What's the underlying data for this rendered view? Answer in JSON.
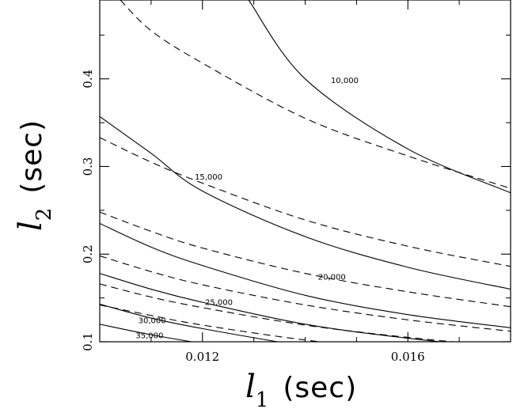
{
  "chart_data": {
    "type": "line",
    "title": "",
    "xlabel": {
      "symbol": "l",
      "subscript": "1",
      "unit": "(sec)"
    },
    "ylabel": {
      "symbol": "l",
      "subscript": "2",
      "unit": "(sec)"
    },
    "xlim": [
      0.01,
      0.018
    ],
    "ylim": [
      0.1,
      0.49
    ],
    "xticks": [
      {
        "value": 0.012,
        "label": "0.012"
      },
      {
        "value": 0.016,
        "label": "0.016"
      }
    ],
    "yticks": [
      {
        "value": 0.1,
        "label": "0.1"
      },
      {
        "value": 0.2,
        "label": "0.2"
      },
      {
        "value": 0.3,
        "label": "0.3"
      },
      {
        "value": 0.4,
        "label": "0.4"
      }
    ],
    "grid": false,
    "series": [
      {
        "name": "10,000",
        "style": "solid",
        "points": [
          [
            0.0129,
            0.49
          ],
          [
            0.014,
            0.4
          ],
          [
            0.016,
            0.32
          ],
          [
            0.018,
            0.27
          ]
        ],
        "label_at": [
          0.0145,
          0.395
        ]
      },
      {
        "name": "15,000",
        "style": "solid",
        "points": [
          [
            0.01,
            0.357
          ],
          [
            0.011,
            0.315
          ],
          [
            0.012,
            0.272
          ],
          [
            0.014,
            0.22
          ],
          [
            0.016,
            0.185
          ],
          [
            0.018,
            0.16
          ]
        ],
        "label_at": [
          0.01185,
          0.285
        ]
      },
      {
        "name": "20,000",
        "style": "solid",
        "points": [
          [
            0.01,
            0.235
          ],
          [
            0.011,
            0.208
          ],
          [
            0.012,
            0.187
          ],
          [
            0.014,
            0.153
          ],
          [
            0.016,
            0.131
          ],
          [
            0.018,
            0.116
          ]
        ],
        "label_at": [
          0.01425,
          0.171
        ]
      },
      {
        "name": "25,000",
        "style": "solid",
        "points": [
          [
            0.01,
            0.178
          ],
          [
            0.011,
            0.16
          ],
          [
            0.012,
            0.145
          ],
          [
            0.014,
            0.12
          ],
          [
            0.016,
            0.104
          ],
          [
            0.018,
            0.092
          ]
        ],
        "label_at": [
          0.01205,
          0.142
        ]
      },
      {
        "name": "30,000",
        "style": "solid",
        "points": [
          [
            0.01,
            0.143
          ],
          [
            0.011,
            0.127
          ],
          [
            0.012,
            0.115
          ],
          [
            0.014,
            0.095
          ],
          [
            0.016,
            0.08
          ]
        ],
        "label_at": [
          0.01075,
          0.121
        ]
      },
      {
        "name": "35,000",
        "style": "solid",
        "points": [
          [
            0.01,
            0.12
          ],
          [
            0.011,
            0.108
          ],
          [
            0.012,
            0.098
          ],
          [
            0.014,
            0.08
          ]
        ],
        "label_at": [
          0.0107,
          0.104
        ]
      },
      {
        "style": "dashed",
        "points": [
          [
            0.0104,
            0.49
          ],
          [
            0.011,
            0.455
          ],
          [
            0.012,
            0.418
          ],
          [
            0.014,
            0.355
          ],
          [
            0.016,
            0.312
          ],
          [
            0.018,
            0.275
          ]
        ]
      },
      {
        "style": "dashed",
        "points": [
          [
            0.01,
            0.333
          ],
          [
            0.011,
            0.305
          ],
          [
            0.012,
            0.281
          ],
          [
            0.014,
            0.239
          ],
          [
            0.016,
            0.209
          ],
          [
            0.018,
            0.186
          ]
        ]
      },
      {
        "style": "dashed",
        "points": [
          [
            0.01,
            0.248
          ],
          [
            0.011,
            0.226
          ],
          [
            0.012,
            0.207
          ],
          [
            0.014,
            0.178
          ],
          [
            0.016,
            0.157
          ],
          [
            0.018,
            0.14
          ]
        ]
      },
      {
        "style": "dashed",
        "points": [
          [
            0.01,
            0.198
          ],
          [
            0.011,
            0.18
          ],
          [
            0.012,
            0.165
          ],
          [
            0.014,
            0.142
          ],
          [
            0.016,
            0.125
          ],
          [
            0.018,
            0.112
          ]
        ]
      },
      {
        "style": "dashed",
        "points": [
          [
            0.01,
            0.166
          ],
          [
            0.011,
            0.151
          ],
          [
            0.012,
            0.139
          ],
          [
            0.014,
            0.119
          ],
          [
            0.016,
            0.105
          ],
          [
            0.018,
            0.094
          ]
        ]
      },
      {
        "style": "dashed",
        "points": [
          [
            0.01,
            0.142
          ],
          [
            0.011,
            0.13
          ],
          [
            0.012,
            0.119
          ],
          [
            0.014,
            0.102
          ],
          [
            0.016,
            0.09
          ]
        ]
      }
    ]
  }
}
